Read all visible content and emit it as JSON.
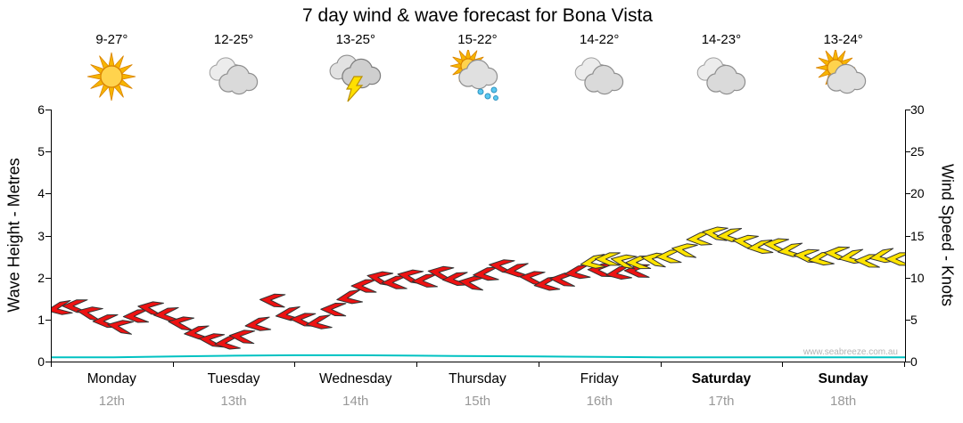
{
  "title": "7 day wind & wave forecast for Bona Vista",
  "watermark": "www.seabreeze.com.au",
  "left_axis": {
    "label": "Wave Height - Metres",
    "min": 0,
    "max": 6,
    "ticks": [
      0,
      1,
      2,
      3,
      4,
      5,
      6
    ]
  },
  "right_axis": {
    "label": "Wind Speed - Knots",
    "min": 0,
    "max": 30,
    "ticks": [
      0,
      5,
      10,
      15,
      20,
      25,
      30
    ]
  },
  "days": [
    {
      "name": "Monday",
      "date": "12th",
      "temp": "9-27°",
      "icon": "sunny",
      "weekend": false
    },
    {
      "name": "Tuesday",
      "date": "13th",
      "temp": "12-25°",
      "icon": "cloudy",
      "weekend": false
    },
    {
      "name": "Wednesday",
      "date": "14th",
      "temp": "13-25°",
      "icon": "storm",
      "weekend": false
    },
    {
      "name": "Thursday",
      "date": "15th",
      "temp": "15-22°",
      "icon": "sun-showers",
      "weekend": false
    },
    {
      "name": "Friday",
      "date": "16th",
      "temp": "14-22°",
      "icon": "cloudy",
      "weekend": false
    },
    {
      "name": "Saturday",
      "date": "17th",
      "temp": "14-23°",
      "icon": "cloudy",
      "weekend": true
    },
    {
      "name": "Sunday",
      "date": "18th",
      "temp": "13-24°",
      "icon": "sun-cloud",
      "weekend": true
    }
  ],
  "chart_data": {
    "type": "wind-arrow-series",
    "x_unit": "days (0 = start of Monday, 7 = end of Sunday)",
    "wind": {
      "unit": "knots",
      "axis_range": [
        0,
        30
      ],
      "colors": {
        "weekday": "#ed1212",
        "weekend": "#ffe400"
      },
      "points": [
        {
          "d": 0.06,
          "kn": 6.3,
          "c": "weekday"
        },
        {
          "d": 0.19,
          "kn": 6.6,
          "c": "weekday"
        },
        {
          "d": 0.31,
          "kn": 5.8,
          "c": "weekday"
        },
        {
          "d": 0.44,
          "kn": 4.8,
          "c": "weekday"
        },
        {
          "d": 0.56,
          "kn": 4.2,
          "c": "weekday"
        },
        {
          "d": 0.69,
          "kn": 5.4,
          "c": "weekday"
        },
        {
          "d": 0.81,
          "kn": 6.4,
          "c": "weekday"
        },
        {
          "d": 0.94,
          "kn": 5.6,
          "c": "weekday"
        },
        {
          "d": 1.06,
          "kn": 4.6,
          "c": "weekday"
        },
        {
          "d": 1.19,
          "kn": 3.4,
          "c": "weekday"
        },
        {
          "d": 1.31,
          "kn": 2.6,
          "c": "weekday"
        },
        {
          "d": 1.44,
          "kn": 2.2,
          "c": "weekday"
        },
        {
          "d": 1.56,
          "kn": 3.0,
          "c": "weekday"
        },
        {
          "d": 1.69,
          "kn": 4.4,
          "c": "weekday"
        },
        {
          "d": 1.81,
          "kn": 7.3,
          "c": "weekday"
        },
        {
          "d": 1.94,
          "kn": 5.6,
          "c": "weekday"
        },
        {
          "d": 2.06,
          "kn": 5.0,
          "c": "weekday"
        },
        {
          "d": 2.19,
          "kn": 4.6,
          "c": "weekday"
        },
        {
          "d": 2.31,
          "kn": 6.2,
          "c": "weekday"
        },
        {
          "d": 2.44,
          "kn": 7.6,
          "c": "weekday"
        },
        {
          "d": 2.56,
          "kn": 9.0,
          "c": "weekday"
        },
        {
          "d": 2.69,
          "kn": 10.0,
          "c": "weekday"
        },
        {
          "d": 2.81,
          "kn": 9.4,
          "c": "weekday"
        },
        {
          "d": 2.94,
          "kn": 10.2,
          "c": "weekday"
        },
        {
          "d": 3.06,
          "kn": 9.6,
          "c": "weekday"
        },
        {
          "d": 3.19,
          "kn": 10.6,
          "c": "weekday"
        },
        {
          "d": 3.31,
          "kn": 9.8,
          "c": "weekday"
        },
        {
          "d": 3.44,
          "kn": 9.4,
          "c": "weekday"
        },
        {
          "d": 3.56,
          "kn": 10.4,
          "c": "weekday"
        },
        {
          "d": 3.69,
          "kn": 11.4,
          "c": "weekday"
        },
        {
          "d": 3.81,
          "kn": 10.8,
          "c": "weekday"
        },
        {
          "d": 3.94,
          "kn": 10.0,
          "c": "weekday"
        },
        {
          "d": 4.06,
          "kn": 9.2,
          "c": "weekday"
        },
        {
          "d": 4.19,
          "kn": 9.8,
          "c": "weekday"
        },
        {
          "d": 4.31,
          "kn": 10.6,
          "c": "weekday"
        },
        {
          "d": 4.44,
          "kn": 11.8,
          "c": "weekend"
        },
        {
          "d": 4.5,
          "kn": 10.9,
          "c": "weekday"
        },
        {
          "d": 4.56,
          "kn": 12.2,
          "c": "weekend"
        },
        {
          "d": 4.65,
          "kn": 10.5,
          "c": "weekday"
        },
        {
          "d": 4.69,
          "kn": 12.0,
          "c": "weekend"
        },
        {
          "d": 4.8,
          "kn": 10.8,
          "c": "weekday"
        },
        {
          "d": 4.81,
          "kn": 11.8,
          "c": "weekend"
        },
        {
          "d": 4.94,
          "kn": 12.2,
          "c": "weekend"
        },
        {
          "d": 5.06,
          "kn": 12.5,
          "c": "weekend"
        },
        {
          "d": 5.19,
          "kn": 13.3,
          "c": "weekend"
        },
        {
          "d": 5.31,
          "kn": 14.6,
          "c": "weekend"
        },
        {
          "d": 5.44,
          "kn": 15.3,
          "c": "weekend"
        },
        {
          "d": 5.56,
          "kn": 15.0,
          "c": "weekend"
        },
        {
          "d": 5.69,
          "kn": 14.3,
          "c": "weekend"
        },
        {
          "d": 5.81,
          "kn": 13.6,
          "c": "weekend"
        },
        {
          "d": 5.94,
          "kn": 13.9,
          "c": "weekend"
        },
        {
          "d": 6.06,
          "kn": 13.2,
          "c": "weekend"
        },
        {
          "d": 6.19,
          "kn": 12.6,
          "c": "weekend"
        },
        {
          "d": 6.31,
          "kn": 12.2,
          "c": "weekend"
        },
        {
          "d": 6.44,
          "kn": 12.9,
          "c": "weekend"
        },
        {
          "d": 6.56,
          "kn": 12.4,
          "c": "weekend"
        },
        {
          "d": 6.69,
          "kn": 12.0,
          "c": "weekend"
        },
        {
          "d": 6.81,
          "kn": 12.5,
          "c": "weekend"
        },
        {
          "d": 6.94,
          "kn": 12.2,
          "c": "weekend"
        }
      ]
    },
    "wave": {
      "unit": "metres",
      "axis_range": [
        0,
        6
      ],
      "color": "#00c2c2",
      "points": [
        {
          "d": 0,
          "m": 0.1
        },
        {
          "d": 0.5,
          "m": 0.1
        },
        {
          "d": 1,
          "m": 0.12
        },
        {
          "d": 1.5,
          "m": 0.14
        },
        {
          "d": 2,
          "m": 0.15
        },
        {
          "d": 2.5,
          "m": 0.15
        },
        {
          "d": 3,
          "m": 0.14
        },
        {
          "d": 3.5,
          "m": 0.13
        },
        {
          "d": 4,
          "m": 0.12
        },
        {
          "d": 4.5,
          "m": 0.11
        },
        {
          "d": 5,
          "m": 0.1
        },
        {
          "d": 5.5,
          "m": 0.1
        },
        {
          "d": 6,
          "m": 0.1
        },
        {
          "d": 6.5,
          "m": 0.1
        },
        {
          "d": 7,
          "m": 0.1
        }
      ]
    }
  }
}
